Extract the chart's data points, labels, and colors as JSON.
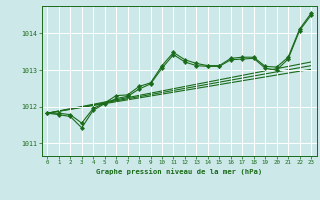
{
  "bg_color": "#cce8e8",
  "grid_color": "#ffffff",
  "line_color": "#1a6b1a",
  "title": "Graphe pression niveau de la mer (hPa)",
  "xlim": [
    -0.5,
    23.5
  ],
  "ylim": [
    1010.65,
    1014.75
  ],
  "yticks": [
    1011,
    1012,
    1013,
    1014
  ],
  "xticks": [
    0,
    1,
    2,
    3,
    4,
    5,
    6,
    7,
    8,
    9,
    10,
    11,
    12,
    13,
    14,
    15,
    16,
    17,
    18,
    19,
    20,
    21,
    22,
    23
  ],
  "series1_x": [
    0,
    1,
    2,
    3,
    4,
    5,
    6,
    7,
    8,
    9,
    10,
    11,
    12,
    13,
    14,
    15,
    16,
    17,
    18,
    19,
    20,
    21,
    22,
    23
  ],
  "series1_y": [
    1011.82,
    1011.78,
    1011.73,
    1011.42,
    1011.9,
    1012.08,
    1012.22,
    1012.28,
    1012.48,
    1012.62,
    1013.05,
    1013.42,
    1013.22,
    1013.12,
    1013.1,
    1013.1,
    1013.28,
    1013.3,
    1013.32,
    1013.05,
    1013.0,
    1013.3,
    1014.08,
    1014.5
  ],
  "series2_x": [
    0,
    1,
    2,
    3,
    4,
    5,
    6,
    7,
    8,
    9,
    10,
    11,
    12,
    13,
    14,
    15,
    16,
    17,
    18,
    19,
    20,
    21,
    22,
    23
  ],
  "series2_y": [
    1011.82,
    1011.82,
    1011.78,
    1011.55,
    1011.95,
    1012.1,
    1012.3,
    1012.32,
    1012.55,
    1012.65,
    1013.12,
    1013.48,
    1013.28,
    1013.18,
    1013.12,
    1013.12,
    1013.32,
    1013.35,
    1013.35,
    1013.1,
    1013.08,
    1013.35,
    1014.12,
    1014.55
  ],
  "trend1_x": [
    0,
    23
  ],
  "trend1_y": [
    1011.82,
    1013.02
  ],
  "trend2_x": [
    0,
    23
  ],
  "trend2_y": [
    1011.82,
    1013.12
  ],
  "trend3_x": [
    0,
    23
  ],
  "trend3_y": [
    1011.82,
    1013.22
  ]
}
